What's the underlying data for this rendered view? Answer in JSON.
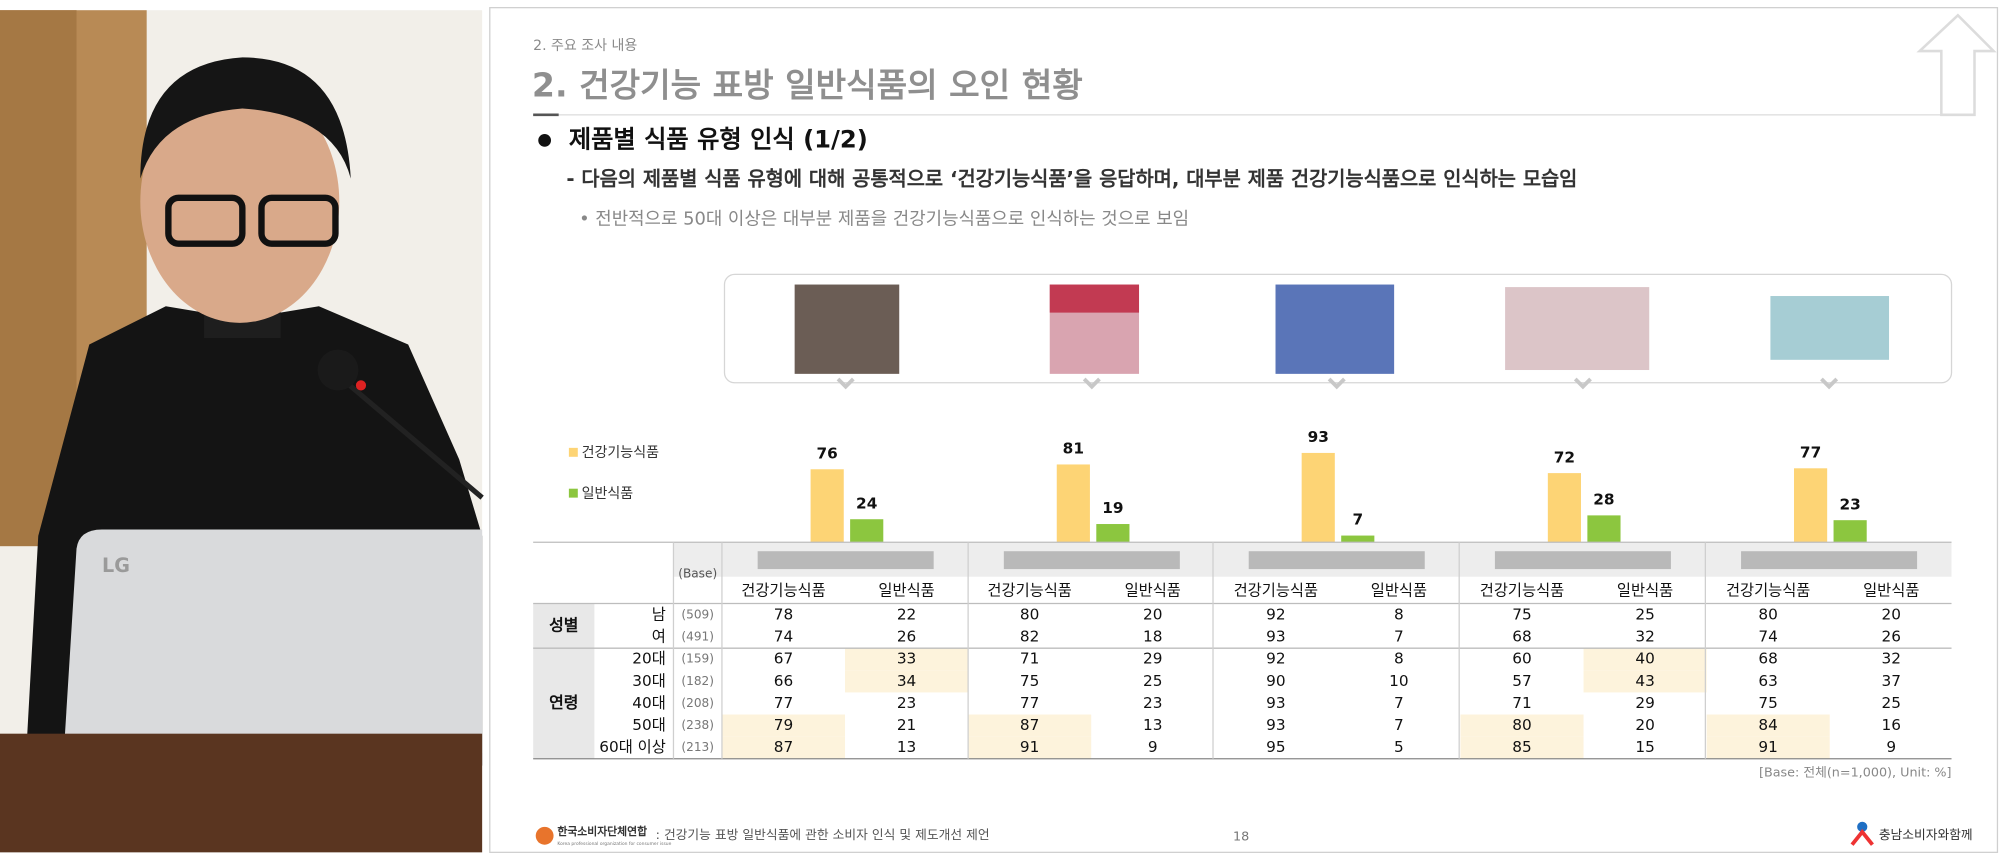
{
  "photo": {
    "laptop_logo": "LG"
  },
  "slide": {
    "breadcrumb": "2. 주요 조사 내용",
    "title": "2. 건강기능 표방 일반식품의 오인 현황",
    "bullet": "제품별 식품 유형 인식 (1/2)",
    "description": "- 다음의 제품별 식품 유형에 대해 공통적으로 ‘건강기능식품’을 응답하며, 대부분 제품 건강기능식품으로 인식하는 모습임",
    "note": "• 전반적으로 50대 이상은 대부분 제품을 건강기능식품으로 인식하는 것으로 보임",
    "base_note": "[Base: 전체(n=1,000), Unit: %]",
    "footer": {
      "left_logo": "한국소비자단체연합",
      "left_logo_sub": "Korea professional organization for consumer issue",
      "report": ": 건강기능 표방 일반식품에 관한 소비자 인식 및 제도개선 제언",
      "page": "18",
      "right_logo": "충남소비자와함께"
    }
  },
  "chart_data": {
    "type": "bar",
    "categories": [
      null,
      null,
      null,
      null,
      null
    ],
    "series": [
      {
        "name": "건강기능식품",
        "color": "#fdd475",
        "values": [
          76,
          81,
          93,
          72,
          77
        ]
      },
      {
        "name": "일반식품",
        "color": "#8cc63f",
        "values": [
          24,
          19,
          7,
          28,
          23
        ]
      }
    ]
  },
  "table": {
    "base_header": "(Base)",
    "subheaders": [
      "건강기능식품",
      "일반식품",
      "건강기능식품",
      "일반식품",
      "건강기능식품",
      "일반식품",
      "건강기능식품",
      "일반식품",
      "건강기능식품",
      "일반식품"
    ],
    "groups": [
      {
        "label": "성별",
        "rows": [
          {
            "label": "남",
            "base": "(509)",
            "values": [
              78,
              22,
              80,
              20,
              92,
              8,
              75,
              25,
              80,
              20
            ]
          },
          {
            "label": "여",
            "base": "(491)",
            "values": [
              74,
              26,
              82,
              18,
              93,
              7,
              68,
              32,
              74,
              26
            ]
          }
        ]
      },
      {
        "label": "연령",
        "rows": [
          {
            "label": "20대",
            "base": "(159)",
            "values": [
              67,
              33,
              71,
              29,
              92,
              8,
              60,
              40,
              68,
              32
            ]
          },
          {
            "label": "30대",
            "base": "(182)",
            "values": [
              66,
              34,
              75,
              25,
              90,
              10,
              57,
              43,
              63,
              37
            ]
          },
          {
            "label": "40대",
            "base": "(208)",
            "values": [
              77,
              23,
              77,
              23,
              93,
              7,
              71,
              29,
              75,
              25
            ]
          },
          {
            "label": "50대",
            "base": "(238)",
            "values": [
              79,
              21,
              87,
              13,
              93,
              7,
              80,
              20,
              84,
              16
            ]
          },
          {
            "label": "60대 이상",
            "base": "(213)",
            "values": [
              87,
              13,
              91,
              9,
              95,
              5,
              85,
              15,
              91,
              9
            ]
          }
        ]
      }
    ],
    "highlight_color": "#fdf3dc",
    "highlight_cells": [
      [
        2,
        1
      ],
      [
        3,
        1
      ],
      [
        2,
        7
      ],
      [
        3,
        7
      ],
      [
        5,
        0
      ],
      [
        5,
        2
      ],
      [
        5,
        6
      ],
      [
        5,
        8
      ],
      [
        6,
        0
      ],
      [
        6,
        2
      ],
      [
        6,
        6
      ],
      [
        6,
        8
      ]
    ]
  }
}
